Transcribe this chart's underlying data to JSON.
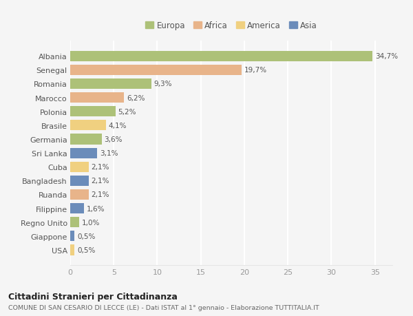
{
  "countries": [
    "Albania",
    "Senegal",
    "Romania",
    "Marocco",
    "Polonia",
    "Brasile",
    "Germania",
    "Sri Lanka",
    "Cuba",
    "Bangladesh",
    "Ruanda",
    "Filippine",
    "Regno Unito",
    "Giappone",
    "USA"
  ],
  "values": [
    34.7,
    19.7,
    9.3,
    6.2,
    5.2,
    4.1,
    3.6,
    3.1,
    2.1,
    2.1,
    2.1,
    1.6,
    1.0,
    0.5,
    0.5
  ],
  "labels": [
    "34,7%",
    "19,7%",
    "9,3%",
    "6,2%",
    "5,2%",
    "4,1%",
    "3,6%",
    "3,1%",
    "2,1%",
    "2,1%",
    "2,1%",
    "1,6%",
    "1,0%",
    "0,5%",
    "0,5%"
  ],
  "colors": [
    "#adc178",
    "#e8b48a",
    "#adc178",
    "#e8b48a",
    "#adc178",
    "#f0d080",
    "#adc178",
    "#6b8cba",
    "#f0d080",
    "#6b8cba",
    "#e8b48a",
    "#6b8cba",
    "#adc178",
    "#6b8cba",
    "#f0d080"
  ],
  "legend": [
    {
      "label": "Europa",
      "color": "#adc178"
    },
    {
      "label": "Africa",
      "color": "#e8b48a"
    },
    {
      "label": "America",
      "color": "#f0d080"
    },
    {
      "label": "Asia",
      "color": "#6b8cba"
    }
  ],
  "title1": "Cittadini Stranieri per Cittadinanza",
  "title2": "COMUNE DI SAN CESARIO DI LECCE (LE) - Dati ISTAT al 1° gennaio - Elaborazione TUTTITALIA.IT",
  "xlim": [
    0,
    37
  ],
  "xticks": [
    0,
    5,
    10,
    15,
    20,
    25,
    30,
    35
  ],
  "background_color": "#f5f5f5",
  "grid_color": "#ffffff"
}
